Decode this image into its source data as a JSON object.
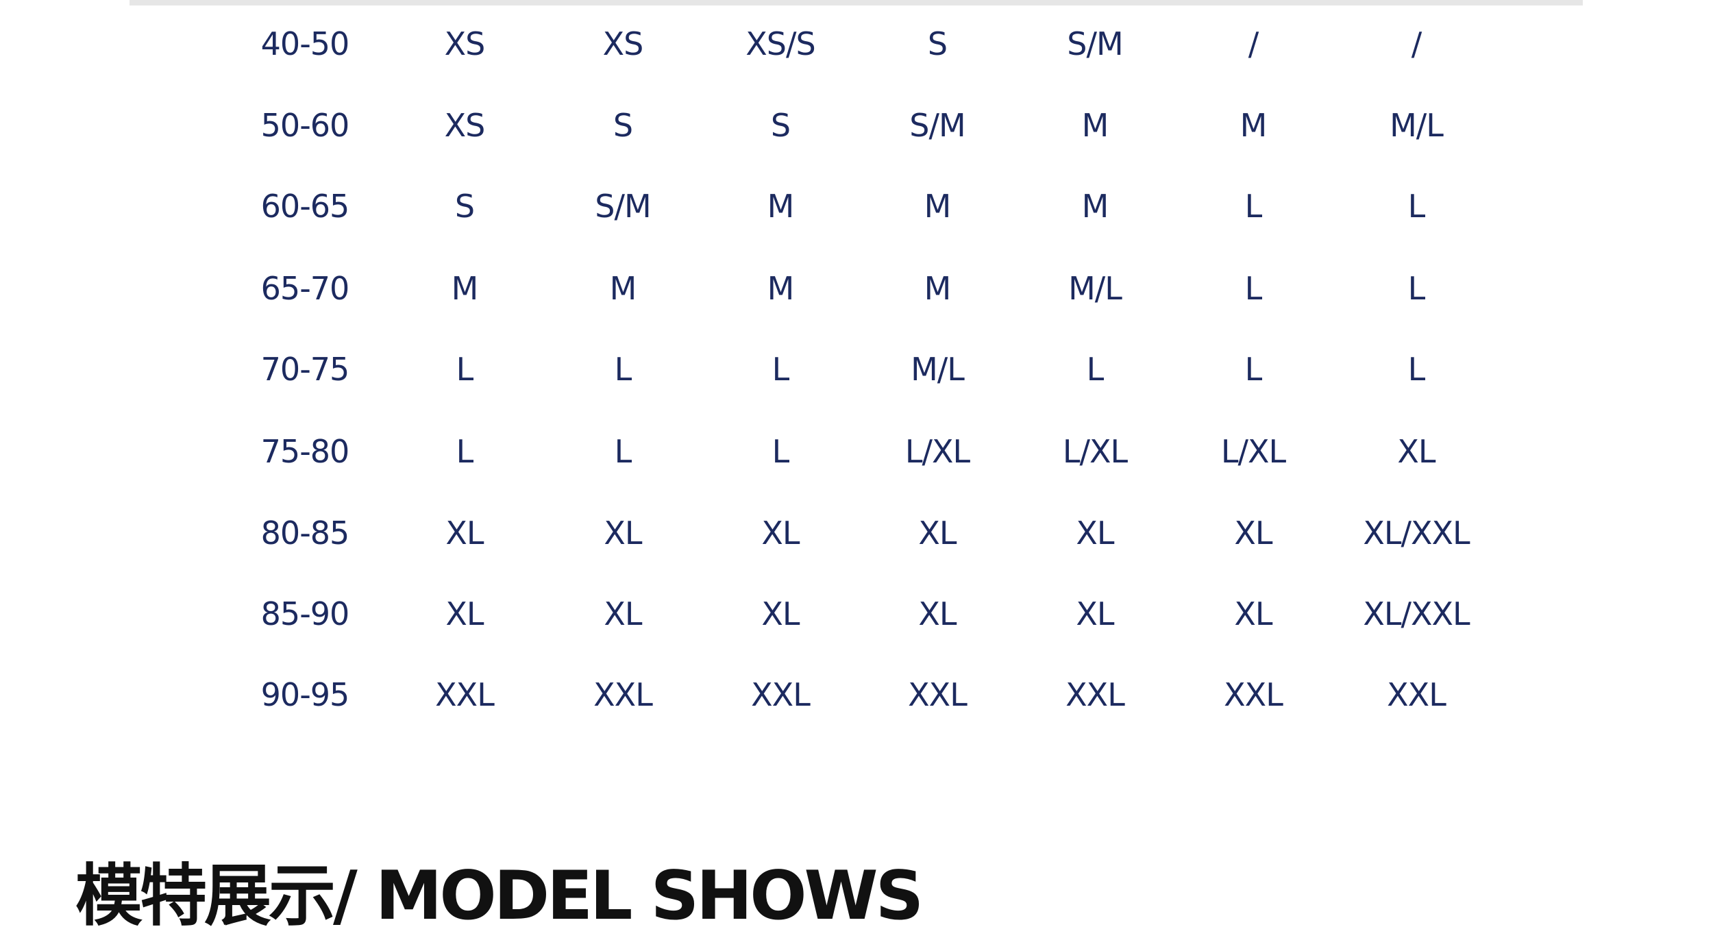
{
  "size_table": {
    "rows": [
      [
        "40-50",
        "XS",
        "XS",
        "XS/S",
        "S",
        "S/M",
        "/",
        "/"
      ],
      [
        "50-60",
        "XS",
        "S",
        "S",
        "S/M",
        "M",
        "M",
        "M/L"
      ],
      [
        "60-65",
        "S",
        "S/M",
        "M",
        "M",
        "M",
        "L",
        "L"
      ],
      [
        "65-70",
        "M",
        "M",
        "M",
        "M",
        "M/L",
        "L",
        "L"
      ],
      [
        "70-75",
        "L",
        "L",
        "L",
        "M/L",
        "L",
        "L",
        "L"
      ],
      [
        "75-80",
        "L",
        "L",
        "L",
        "L/XL",
        "L/XL",
        "L/XL",
        "XL"
      ],
      [
        "80-85",
        "XL",
        "XL",
        "XL",
        "XL",
        "XL",
        "XL",
        "XL/XXL"
      ],
      [
        "85-90",
        "XL",
        "XL",
        "XL",
        "XL",
        "XL",
        "XL",
        "XL/XXL"
      ],
      [
        "90-95",
        "XXL",
        "XXL",
        "XXL",
        "XXL",
        "XXL",
        "XXL",
        "XXL"
      ]
    ],
    "text_color": "#1c2a5f"
  },
  "section_heading": "模特展示/ MODEL SHOWS"
}
